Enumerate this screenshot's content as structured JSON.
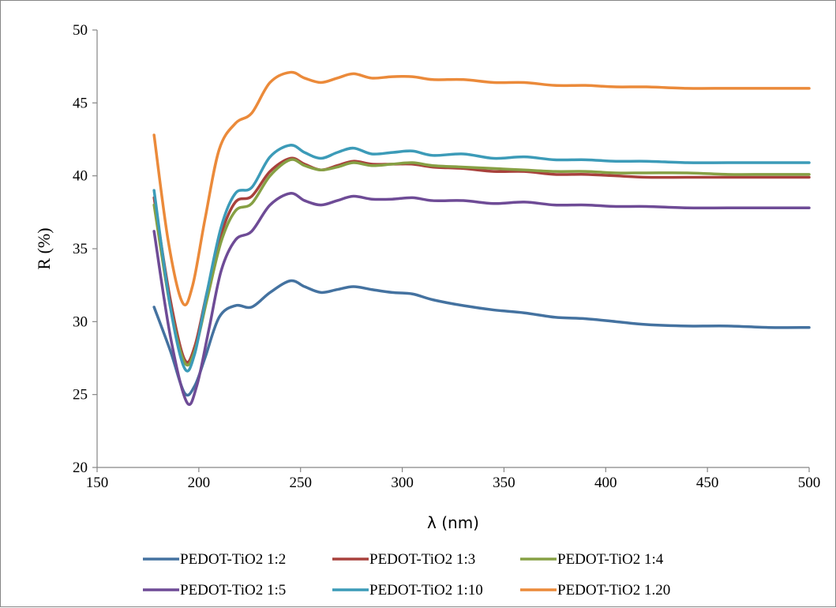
{
  "chart_data": {
    "type": "line",
    "title": "",
    "xlabel": "λ (nm)",
    "ylabel": "R (%)",
    "xlim": [
      150,
      500
    ],
    "ylim": [
      20,
      50
    ],
    "xticks": [
      150,
      200,
      250,
      300,
      350,
      400,
      450,
      500
    ],
    "yticks": [
      20,
      25,
      30,
      35,
      40,
      45,
      50
    ],
    "grid": false,
    "legend_position": "bottom",
    "series": [
      {
        "name": "PEDOT-TiO2 1:2",
        "color": "#4472A0",
        "x": [
          178,
          186,
          193,
          198,
          203,
          210,
          218,
          226,
          235,
          245,
          252,
          260,
          268,
          276,
          285,
          295,
          305,
          315,
          330,
          345,
          360,
          375,
          390,
          405,
          420,
          440,
          460,
          480,
          500
        ],
        "y": [
          31.0,
          28.0,
          25.1,
          25.6,
          27.5,
          30.3,
          31.1,
          31.0,
          32.0,
          32.8,
          32.4,
          32.0,
          32.2,
          32.4,
          32.2,
          32.0,
          31.9,
          31.5,
          31.1,
          30.8,
          30.6,
          30.3,
          30.2,
          30.0,
          29.8,
          29.7,
          29.7,
          29.6,
          29.6
        ]
      },
      {
        "name": "PEDOT-TiO2 1:3",
        "color": "#A8413C",
        "x": [
          178,
          186,
          193,
          198,
          204,
          211,
          218,
          226,
          235,
          245,
          252,
          260,
          268,
          276,
          285,
          295,
          305,
          315,
          330,
          345,
          360,
          375,
          390,
          405,
          420,
          440,
          460,
          480,
          500
        ],
        "y": [
          38.5,
          31.5,
          27.4,
          28.3,
          32.0,
          36.0,
          38.2,
          38.6,
          40.3,
          41.2,
          40.8,
          40.4,
          40.7,
          41.0,
          40.8,
          40.8,
          40.8,
          40.6,
          40.5,
          40.3,
          40.3,
          40.1,
          40.1,
          40.0,
          39.9,
          39.9,
          39.9,
          39.9,
          39.9
        ]
      },
      {
        "name": "PEDOT-TiO2 1:4",
        "color": "#86A044",
        "x": [
          178,
          186,
          193,
          198,
          204,
          211,
          218,
          226,
          235,
          245,
          252,
          260,
          268,
          276,
          285,
          295,
          305,
          315,
          330,
          345,
          360,
          375,
          390,
          405,
          420,
          440,
          460,
          480,
          500
        ],
        "y": [
          38.0,
          31.0,
          27.2,
          28.0,
          31.5,
          35.5,
          37.6,
          38.1,
          40.0,
          41.1,
          40.7,
          40.4,
          40.6,
          40.9,
          40.7,
          40.8,
          40.9,
          40.7,
          40.6,
          40.5,
          40.4,
          40.3,
          40.3,
          40.2,
          40.2,
          40.2,
          40.1,
          40.1,
          40.1
        ]
      },
      {
        "name": "PEDOT-TiO2 1:5",
        "color": "#6E4B96",
        "x": [
          178,
          186,
          194,
          199,
          205,
          211,
          218,
          226,
          235,
          245,
          252,
          260,
          268,
          276,
          285,
          295,
          305,
          315,
          330,
          345,
          360,
          375,
          390,
          405,
          420,
          440,
          460,
          480,
          500
        ],
        "y": [
          36.2,
          29.0,
          24.5,
          25.6,
          29.5,
          33.5,
          35.6,
          36.2,
          38.0,
          38.8,
          38.3,
          38.0,
          38.3,
          38.6,
          38.4,
          38.4,
          38.5,
          38.3,
          38.3,
          38.1,
          38.2,
          38.0,
          38.0,
          37.9,
          37.9,
          37.8,
          37.8,
          37.8,
          37.8
        ]
      },
      {
        "name": "PEDOT-TiO2 1:10",
        "color": "#3C9BB8",
        "x": [
          178,
          186,
          193,
          198,
          204,
          211,
          218,
          226,
          235,
          245,
          252,
          260,
          268,
          276,
          285,
          295,
          305,
          315,
          330,
          345,
          360,
          375,
          390,
          405,
          420,
          440,
          460,
          480,
          500
        ],
        "y": [
          39.0,
          31.0,
          26.8,
          27.8,
          32.0,
          36.5,
          38.8,
          39.2,
          41.3,
          42.1,
          41.6,
          41.2,
          41.6,
          41.9,
          41.5,
          41.6,
          41.7,
          41.4,
          41.5,
          41.2,
          41.3,
          41.1,
          41.1,
          41.0,
          41.0,
          40.9,
          40.9,
          40.9,
          40.9
        ]
      },
      {
        "name": "PEDOT-TiO2 1.20",
        "color": "#EB8A3A",
        "x": [
          178,
          185,
          192,
          197,
          203,
          210,
          218,
          226,
          235,
          245,
          252,
          260,
          268,
          276,
          285,
          295,
          305,
          315,
          330,
          345,
          360,
          375,
          390,
          405,
          420,
          440,
          460,
          480,
          500
        ],
        "y": [
          42.8,
          35.5,
          31.3,
          32.5,
          37.0,
          41.8,
          43.6,
          44.3,
          46.4,
          47.1,
          46.7,
          46.4,
          46.7,
          47.0,
          46.7,
          46.8,
          46.8,
          46.6,
          46.6,
          46.4,
          46.4,
          46.2,
          46.2,
          46.1,
          46.1,
          46.0,
          46.0,
          46.0,
          46.0
        ]
      }
    ]
  }
}
